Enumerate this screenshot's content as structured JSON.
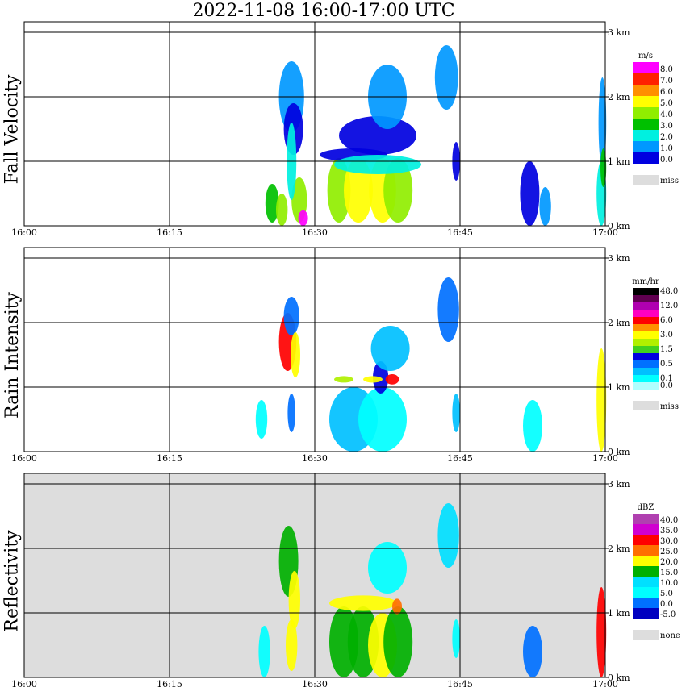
{
  "title": "2022-11-08   16:00-17:00 UTC",
  "chart_data": [
    {
      "type": "heatmap",
      "ylabel": "Fall Velocity",
      "units": "m/s",
      "x_ticks": [
        "16:00",
        "16:15",
        "16:30",
        "16:45",
        "17:00"
      ],
      "y_ticks": [
        "0 km",
        "1 km",
        "2 km",
        "3 km"
      ],
      "xlim": [
        "16:00",
        "17:00"
      ],
      "ylim_km": [
        0,
        3.2
      ],
      "grid": true,
      "legend": [
        {
          "label": "8.0",
          "color": "#ff00ff"
        },
        {
          "label": "7.0",
          "color": "#ff2000"
        },
        {
          "label": "6.0",
          "color": "#ff9000"
        },
        {
          "label": "5.0",
          "color": "#ffff00"
        },
        {
          "label": "4.0",
          "color": "#90ee00"
        },
        {
          "label": "3.0",
          "color": "#00c000"
        },
        {
          "label": "2.0",
          "color": "#00f0e0"
        },
        {
          "label": "1.0",
          "color": "#0098ff"
        },
        {
          "label": "0.0",
          "color": "#0000e0"
        }
      ],
      "missing_label": "miss",
      "missing_color": "#dddddd",
      "background": "#ffffff"
    },
    {
      "type": "heatmap",
      "ylabel": "Rain Intensity",
      "units": "mm/hr",
      "x_ticks": [
        "16:00",
        "16:15",
        "16:30",
        "16:45",
        "17:00"
      ],
      "y_ticks": [
        "0 km",
        "1 km",
        "2 km",
        "3 km"
      ],
      "xlim": [
        "16:00",
        "17:00"
      ],
      "ylim_km": [
        0,
        3.2
      ],
      "grid": true,
      "legend": [
        {
          "label": "48.0",
          "color": "#000000"
        },
        {
          "label": "",
          "color": "#600050"
        },
        {
          "label": "12.0",
          "color": "#b000b0"
        },
        {
          "label": "",
          "color": "#ff00c0"
        },
        {
          "label": "6.0",
          "color": "#ff0000"
        },
        {
          "label": "",
          "color": "#ff9000"
        },
        {
          "label": "3.0",
          "color": "#ffff00"
        },
        {
          "label": "",
          "color": "#b0f000"
        },
        {
          "label": "1.5",
          "color": "#40d020"
        },
        {
          "label": "",
          "color": "#0000e0"
        },
        {
          "label": "0.5",
          "color": "#0070ff"
        },
        {
          "label": "",
          "color": "#00c0ff"
        },
        {
          "label": "0.1",
          "color": "#00ffff"
        },
        {
          "label": "0.0",
          "color": "#b0ffff"
        }
      ],
      "missing_label": "miss",
      "missing_color": "#dddddd",
      "background": "#ffffff"
    },
    {
      "type": "heatmap",
      "ylabel": "Reflectivity",
      "units": "dBZ",
      "x_ticks": [
        "16:00",
        "16:15",
        "16:30",
        "16:45",
        "17:00"
      ],
      "y_ticks": [
        "0 km",
        "1 km",
        "2 km",
        "3 km"
      ],
      "xlim": [
        "16:00",
        "17:00"
      ],
      "ylim_km": [
        0,
        3.2
      ],
      "grid": true,
      "legend": [
        {
          "label": "40.0",
          "color": "#b040b0"
        },
        {
          "label": "35.0",
          "color": "#d000d0"
        },
        {
          "label": "30.0",
          "color": "#ff0000"
        },
        {
          "label": "25.0",
          "color": "#ff7000"
        },
        {
          "label": "20.0",
          "color": "#ffff00"
        },
        {
          "label": "15.0",
          "color": "#00b000"
        },
        {
          "label": "10.0",
          "color": "#00e0ff"
        },
        {
          "label": "5.0",
          "color": "#00ffff"
        },
        {
          "label": "0.0",
          "color": "#0070ff"
        },
        {
          "label": "-5.0",
          "color": "#0000c0"
        }
      ],
      "missing_label": "none",
      "missing_color": "#dddddd",
      "background": "#dddddd"
    }
  ]
}
